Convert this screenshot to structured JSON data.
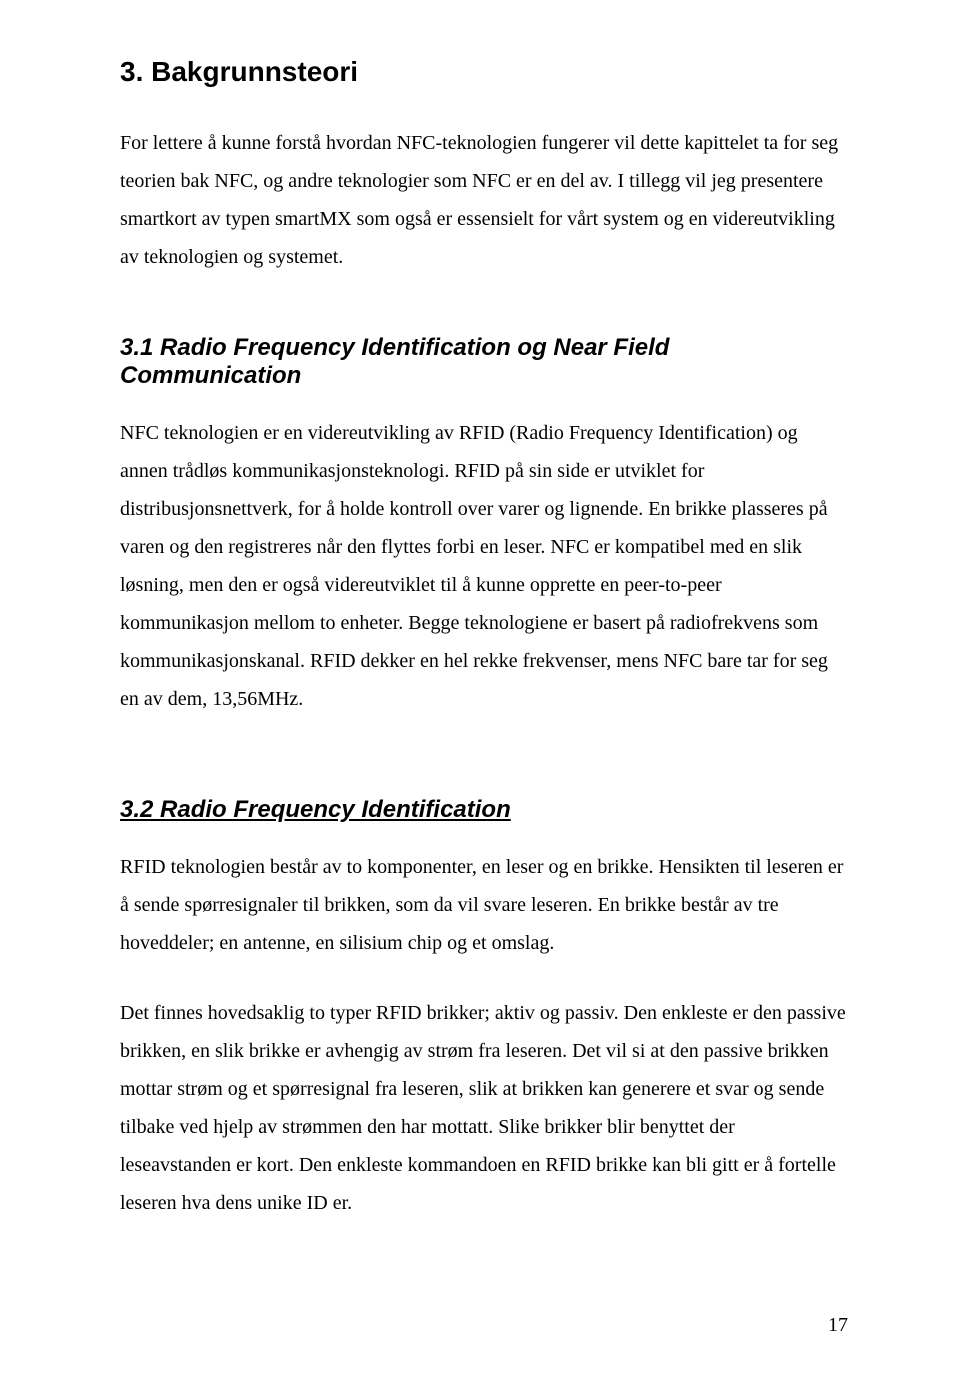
{
  "page": {
    "number": "17",
    "background_color": "#ffffff",
    "text_color": "#000000",
    "heading_font": "Arial, Helvetica, sans-serif",
    "body_font": "Times New Roman, Times, serif",
    "heading1_fontsize": 28,
    "heading2_fontsize": 24,
    "body_fontsize": 20,
    "line_height": 1.9
  },
  "h1": "3. Bakgrunnsteori",
  "p1": "For lettere å kunne forstå hvordan NFC-teknologien fungerer vil dette kapittelet ta for seg teorien bak NFC, og andre teknologier som NFC er en del av. I tillegg vil jeg presentere smartkort av typen smartMX som også er essensielt for vårt system og en videreutvikling av teknologien og systemet.",
  "h2_1": "3.1 Radio Frequency Identification og Near Field Communication",
  "p2": "NFC teknologien er en videreutvikling av RFID (Radio Frequency Identification) og annen trådløs kommunikasjonsteknologi. RFID på sin side er utviklet for distribusjonsnettverk, for å holde kontroll over varer og lignende. En brikke plasseres på varen og den registreres når den flyttes forbi en leser. NFC er kompatibel med en slik løsning, men den er også videreutviklet til å kunne opprette en peer-to-peer kommunikasjon mellom to enheter. Begge teknologiene er basert på radiofrekvens som kommunikasjonskanal. RFID dekker en hel rekke frekvenser, mens NFC bare tar for seg en av dem, 13,56MHz.",
  "h2_2": "3.2 Radio Frequency Identification",
  "p3": "RFID teknologien består av to komponenter, en leser og en brikke. Hensikten til leseren er å sende spørresignaler til brikken, som da vil svare leseren. En brikke består av tre hoveddeler; en antenne, en silisium chip og et omslag.",
  "p4": "Det finnes hovedsaklig to typer RFID brikker; aktiv og passiv. Den enkleste er den passive brikken, en slik brikke er avhengig av strøm fra leseren. Det vil si at den passive brikken mottar strøm og et spørresignal fra leseren, slik at brikken kan generere et svar og sende tilbake ved hjelp av strømmen den har mottatt. Slike brikker blir benyttet der leseavstanden er kort. Den enkleste kommandoen en RFID brikke kan bli gitt er å fortelle leseren hva dens unike ID er."
}
